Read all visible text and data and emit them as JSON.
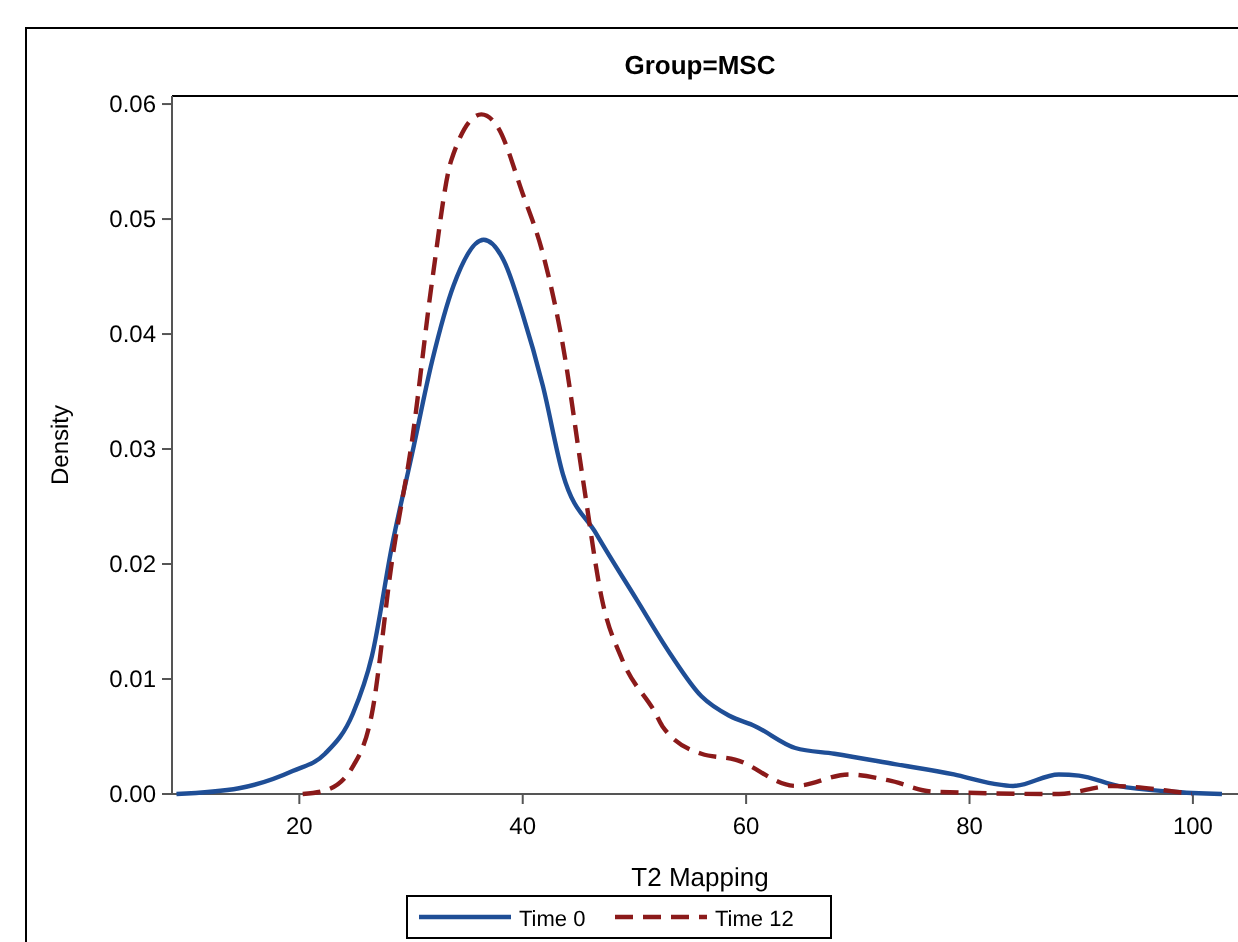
{
  "chart_data": {
    "type": "line",
    "title": "Group=MSC",
    "xlabel": "T2 Mapping",
    "ylabel": "Density",
    "xlim": [
      8.6,
      103.5
    ],
    "ylim": [
      0,
      0.0607
    ],
    "xticks": [
      20,
      40,
      60,
      80,
      100
    ],
    "yticks": [
      {
        "value": 0,
        "label": "0.00"
      },
      {
        "value": 0.01,
        "label": "0.01"
      },
      {
        "value": 0.02,
        "label": "0.02"
      },
      {
        "value": 0.03,
        "label": "0.03"
      },
      {
        "value": 0.04,
        "label": "0.04"
      },
      {
        "value": 0.05,
        "label": "0.05"
      },
      {
        "value": 0.06,
        "label": "0.06"
      }
    ],
    "grid": false,
    "legend": "bottom",
    "series": [
      {
        "name": "Time 0",
        "color": "#1f4e96",
        "line_style": "solid",
        "x": [
          9,
          14.6,
          19.4,
          22.3,
          24.8,
          26.5,
          28.3,
          30.1,
          31.9,
          33.8,
          36.5,
          38.3,
          40,
          41.8,
          43.6,
          46.6,
          50.2,
          53.2,
          56,
          58.5,
          60.8,
          64.4,
          67.9,
          73.3,
          78.6,
          82.1,
          83.9,
          88,
          89.8,
          93.3,
          98.1,
          102.6
        ],
        "values": [
          0,
          0.0005,
          0.002,
          0.0035,
          0.007,
          0.012,
          0.0216,
          0.0296,
          0.0377,
          0.0442,
          0.0482,
          0.0464,
          0.0417,
          0.0355,
          0.0278,
          0.0226,
          0.0169,
          0.0122,
          0.0085,
          0.0068,
          0.0059,
          0.004,
          0.0035,
          0.0026,
          0.0017,
          0.0009,
          0.0007,
          0.0017,
          0.0016,
          0.0007,
          0.0002,
          0
        ]
      },
      {
        "name": "Time 12",
        "color": "#8b1a1a",
        "line_style": "dashed",
        "x": [
          20.3,
          22.3,
          24.8,
          26.5,
          28.3,
          30.1,
          31.9,
          33.6,
          36.3,
          37.7,
          40,
          41.8,
          43.6,
          45.4,
          47.1,
          48.9,
          51.9,
          52.5,
          56,
          59,
          64.4,
          69.2,
          72.7,
          76.8,
          88,
          92.8,
          97.6,
          99.9
        ],
        "values": [
          0,
          0.0003,
          0.0024,
          0.007,
          0.0203,
          0.0308,
          0.0447,
          0.0551,
          0.0591,
          0.0581,
          0.0522,
          0.047,
          0.039,
          0.0273,
          0.0169,
          0.0117,
          0.007,
          0.0059,
          0.0035,
          0.003,
          0.0007,
          0.0017,
          0.0012,
          0.0002,
          0,
          0.0007,
          0.0003,
          0
        ]
      }
    ]
  }
}
